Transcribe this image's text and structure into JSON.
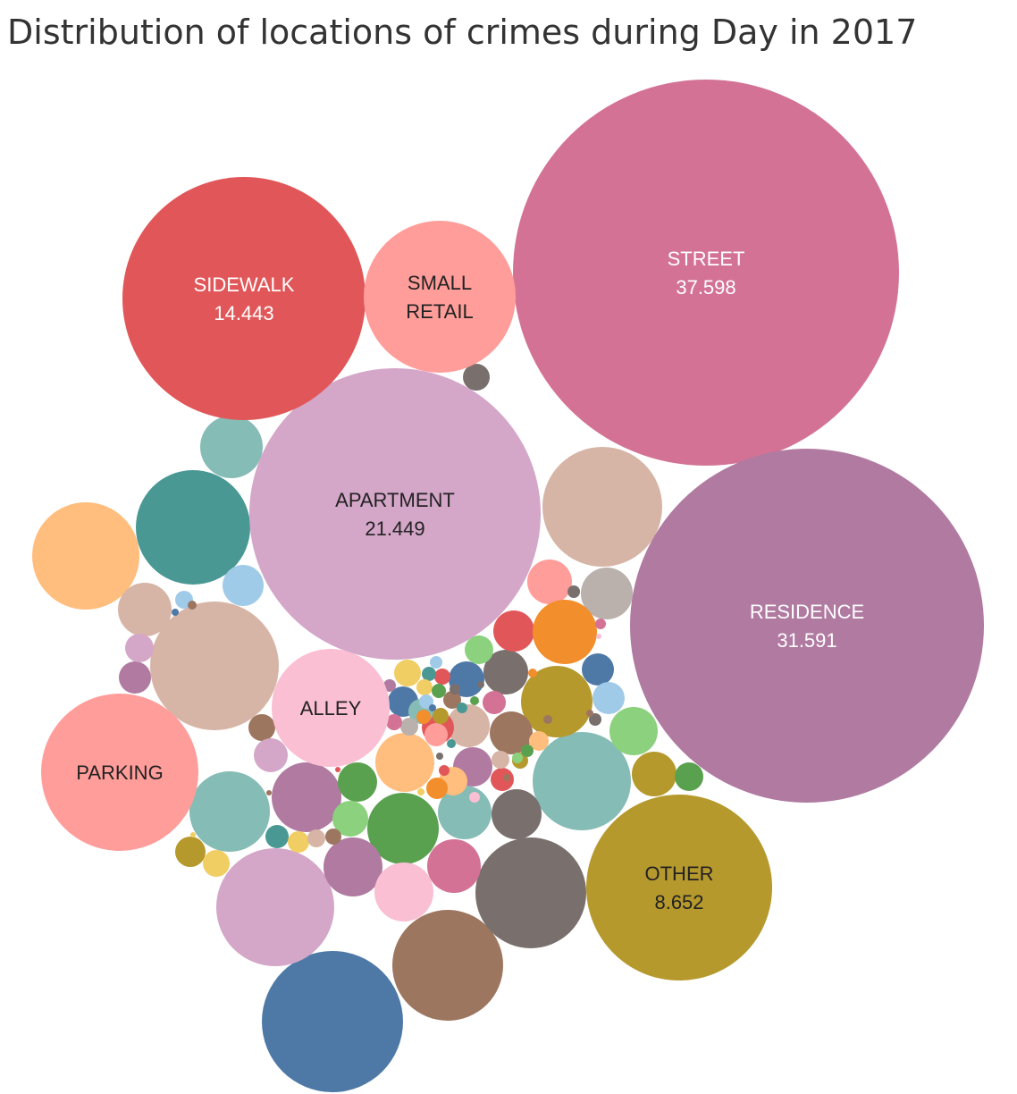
{
  "title": "Distribution of locations of crimes during Day in 2017",
  "chart_data": {
    "type": "bubble",
    "title": "Distribution of locations of crimes during Day in 2017",
    "bubbles": [
      {
        "name": "STREET",
        "value_label": "37.598",
        "color": "#d37295",
        "text_color": "#ffffff"
      },
      {
        "name": "RESIDENCE",
        "value_label": "31.591",
        "color": "#b07aa1",
        "text_color": "#ffffff"
      },
      {
        "name": "APARTMENT",
        "value_label": "21.449",
        "color": "#d4a6c8",
        "text_color": "#222222"
      },
      {
        "name": "SIDEWALK",
        "value_label": "14.443",
        "color": "#e15759",
        "text_color": "#ffffff"
      },
      {
        "name": "OTHER",
        "value_label": "8.652",
        "color": "#b6992d",
        "text_color": "#222222"
      },
      {
        "name": "SMALL RETAIL",
        "label_lines": [
          "SMALL",
          "RETAIL"
        ],
        "color": "#ff9d9a",
        "text_color": "#222222"
      },
      {
        "name": "PARKING",
        "color": "#ff9d9a",
        "text_color": "#222222"
      },
      {
        "name": "ALLEY",
        "color": "#fabfd2",
        "text_color": "#222222"
      }
    ],
    "unlabeled_bubble_colors": [
      "#4e79a7",
      "#a0cbe8",
      "#f28e2b",
      "#ffbe7d",
      "#59a14f",
      "#8cd17d",
      "#499894",
      "#86bcb6",
      "#f1ce63",
      "#9d7660",
      "#d7b5a6",
      "#79706e",
      "#bab0ac",
      "#e15759",
      "#ff9d9a",
      "#d37295",
      "#fabfd2",
      "#b07aa1",
      "#d4a6c8",
      "#b6992d"
    ]
  }
}
